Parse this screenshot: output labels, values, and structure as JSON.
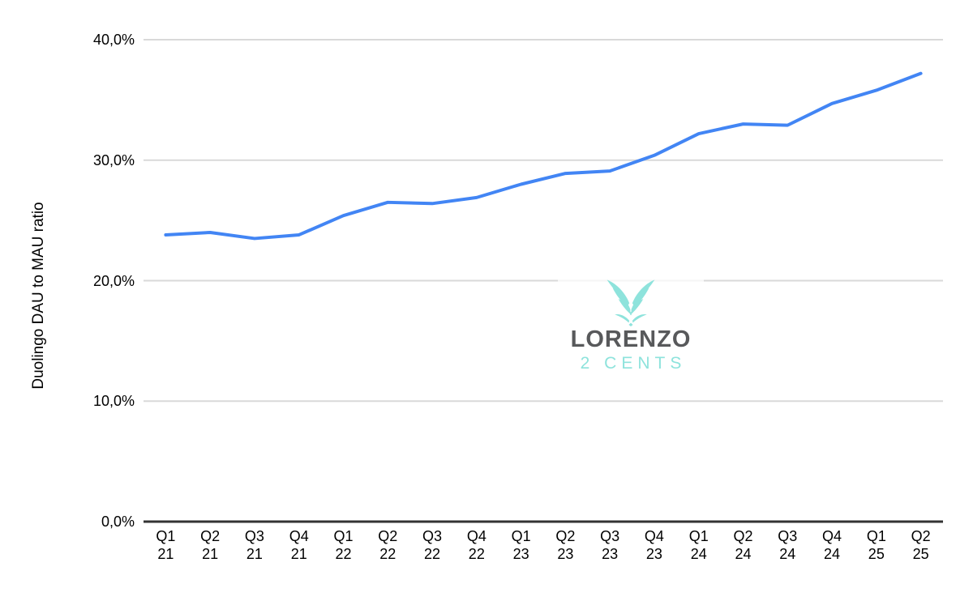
{
  "chart": {
    "y_axis_title": "Duolingo DAU to MAU ratio"
  },
  "chart_data": {
    "type": "line",
    "title": "",
    "xlabel": "",
    "ylabel": "Duolingo DAU to MAU ratio",
    "series_name": "Duolingo DAU to MAU ratio",
    "categories": [
      "Q1 21",
      "Q2 21",
      "Q3 21",
      "Q4 21",
      "Q1 22",
      "Q2 22",
      "Q3 22",
      "Q4 22",
      "Q1 23",
      "Q2 23",
      "Q3 23",
      "Q4 23",
      "Q1 24",
      "Q2 24",
      "Q3 24",
      "Q4 24",
      "Q1 25",
      "Q2 25"
    ],
    "values": [
      23.8,
      24.0,
      23.5,
      23.8,
      25.4,
      26.5,
      26.4,
      26.9,
      28.0,
      28.9,
      29.1,
      30.4,
      32.2,
      33.0,
      32.9,
      34.7,
      35.8,
      37.2
    ],
    "ylim": [
      0,
      40
    ],
    "yticks": [
      {
        "value": 0,
        "label": "0,0%"
      },
      {
        "value": 10,
        "label": "10,0%"
      },
      {
        "value": 20,
        "label": "20,0%"
      },
      {
        "value": 30,
        "label": "30,0%"
      },
      {
        "value": 40,
        "label": "40,0%"
      }
    ],
    "grid": "horizontal",
    "legend": "none"
  },
  "logo": {
    "title": "LORENZO",
    "subtitle": "2 CENTS"
  },
  "colors": {
    "line": "#4285f4",
    "gridline": "#d9d9d9",
    "axis": "#333333",
    "tick_text": "#000000",
    "logo_text": "#58595b",
    "logo_accent": "#8ee3dc"
  }
}
